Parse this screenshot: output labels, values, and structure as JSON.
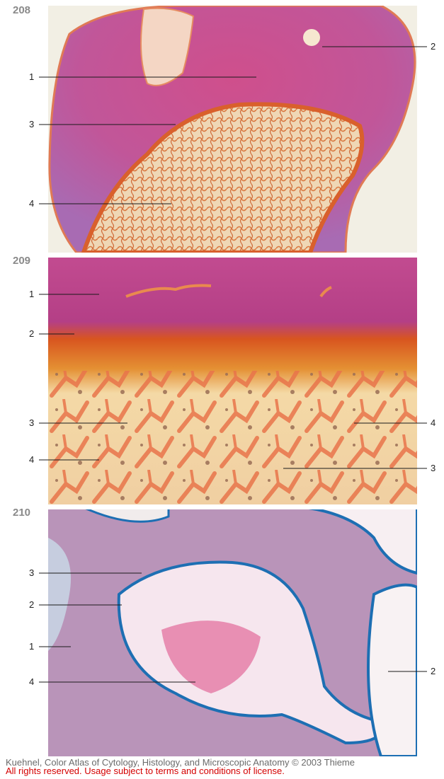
{
  "figures": [
    {
      "number": "208",
      "labels": [
        "1",
        "2",
        "3",
        "4"
      ]
    },
    {
      "number": "209",
      "labels": [
        "1",
        "2",
        "3",
        "4",
        "4",
        "3"
      ]
    },
    {
      "number": "210",
      "labels": [
        "3",
        "2",
        "1",
        "4",
        "2"
      ]
    }
  ],
  "credit": {
    "line1": "Kuehnel, Color Atlas of Cytology, Histology, and Microscopic Anatomy © 2003 Thieme",
    "line2": "All rights reserved. Usage subject to terms and conditions of license."
  },
  "colors": {
    "cartilage": "#c45a9a",
    "bone_trabeculae": "#e8734a",
    "marrow": "#f3e0b8",
    "osteoid_edge": "#1d6fb3",
    "credit_line1": "#6b6b6b",
    "credit_line2": "#d40000"
  }
}
